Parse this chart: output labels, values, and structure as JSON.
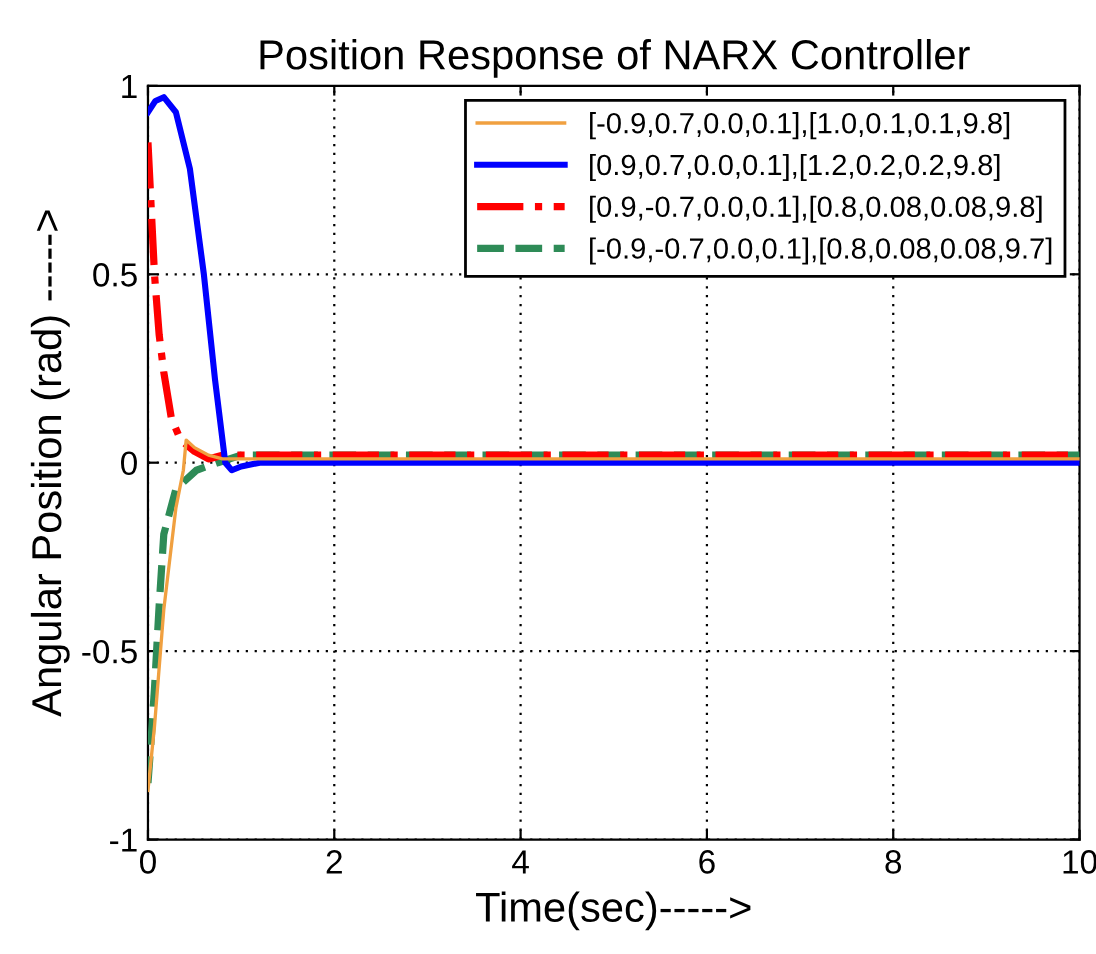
{
  "chart_data": {
    "type": "line",
    "title": "Position Response of NARX Controller",
    "xlabel": "Time(sec)----->",
    "ylabel": "Angular Position (rad) ----->",
    "xlim": [
      0,
      10
    ],
    "ylim": [
      -1,
      1
    ],
    "xticks": [
      0,
      2,
      4,
      6,
      8,
      10
    ],
    "yticks": [
      -1,
      -0.5,
      0,
      0.5,
      1
    ],
    "grid": true,
    "legend": "top right",
    "series": [
      {
        "name": "[-0.9,0.7,0.0,0.1],[1.0,0.1,0.1,9.8]",
        "color": "#f0a040",
        "line_style": "solid",
        "x": [
          0,
          0.07,
          0.17,
          0.3,
          0.38,
          0.41,
          0.5,
          0.65,
          0.8,
          1.0,
          2,
          4,
          6,
          8,
          10
        ],
        "values": [
          -0.87,
          -0.7,
          -0.39,
          -0.12,
          -0.02,
          0.06,
          0.04,
          0.02,
          0.01,
          0.01,
          0.01,
          0.01,
          0.01,
          0.01,
          0.01
        ]
      },
      {
        "name": "[0.9,0.7,0.0,0.1],[1.2,0.2,0.2,9.8]",
        "color": "#0000ff",
        "line_style": "solid",
        "x": [
          0,
          0.08,
          0.17,
          0.3,
          0.45,
          0.6,
          0.72,
          0.83,
          0.9,
          1.0,
          1.2,
          2,
          4,
          6,
          8,
          10
        ],
        "values": [
          0.93,
          0.96,
          0.97,
          0.93,
          0.78,
          0.5,
          0.22,
          0.0,
          -0.02,
          -0.01,
          0.0,
          0.0,
          0.0,
          0.0,
          0.0,
          0.0
        ]
      },
      {
        "name": "[0.9,-0.7,0.0,0.1],[0.8,0.08,0.08,9.8]",
        "color": "#ff0000",
        "line_style": "dashdot",
        "x": [
          0,
          0.03,
          0.07,
          0.12,
          0.17,
          0.25,
          0.35,
          0.5,
          0.65,
          0.8,
          1.0,
          2,
          4,
          6,
          8,
          10
        ],
        "values": [
          0.85,
          0.7,
          0.5,
          0.34,
          0.24,
          0.12,
          0.06,
          0.03,
          0.01,
          0.02,
          0.02,
          0.02,
          0.02,
          0.02,
          0.02,
          0.02
        ]
      },
      {
        "name": "[-0.9,-0.7,0.0,0.1],[0.8,0.08,0.08,9.7]",
        "color": "#2e8b57",
        "line_style": "dashed",
        "x": [
          0,
          0.03,
          0.07,
          0.12,
          0.17,
          0.3,
          0.52,
          0.75,
          1.0,
          2,
          4,
          6,
          8,
          10
        ],
        "values": [
          -0.85,
          -0.75,
          -0.6,
          -0.38,
          -0.19,
          -0.07,
          -0.02,
          0.0,
          0.02,
          0.02,
          0.02,
          0.02,
          0.02,
          0.02
        ]
      }
    ]
  }
}
